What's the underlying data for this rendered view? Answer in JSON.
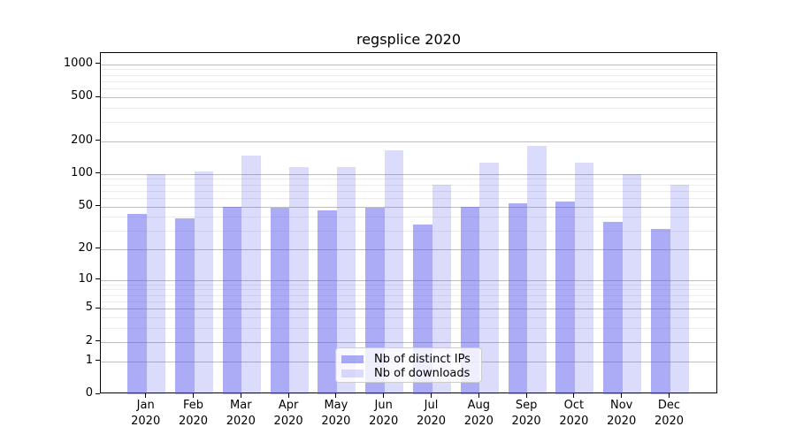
{
  "chart_data": {
    "type": "bar",
    "title": "regsplice 2020",
    "year": "2020",
    "months": [
      "Jan",
      "Feb",
      "Mar",
      "Apr",
      "May",
      "Jun",
      "Jul",
      "Aug",
      "Sep",
      "Oct",
      "Nov",
      "Dec"
    ],
    "categories": [
      "Jan 2020",
      "Feb 2020",
      "Mar 2020",
      "Apr 2020",
      "May 2020",
      "Jun 2020",
      "Jul 2020",
      "Aug 2020",
      "Sep 2020",
      "Oct 2020",
      "Nov 2020",
      "Dec 2020"
    ],
    "series": [
      {
        "name": "Nb of distinct IPs",
        "key": "distinct-ips",
        "fill": "rgba(87,89,236,0.5)",
        "solid_color": "#ababf6",
        "values": [
          43,
          39,
          50,
          49,
          46,
          49,
          34,
          50,
          54,
          56,
          36,
          31
        ]
      },
      {
        "name": "Nb of downloads",
        "key": "downloads",
        "fill": "rgba(87,89,236,0.21)",
        "solid_color": "#dcddfa",
        "values": [
          100,
          105,
          148,
          116,
          115,
          165,
          80,
          127,
          180,
          127,
          100,
          80
        ]
      }
    ],
    "yscale": "log10(value+1)",
    "ylim": [
      0,
      1000
    ],
    "yticks": [
      0,
      1,
      2,
      5,
      10,
      20,
      50,
      100,
      200,
      500,
      1000
    ],
    "ytick_labels": [
      "0",
      "1",
      "2",
      "5",
      "10",
      "20",
      "50",
      "100",
      "200",
      "500",
      "1000"
    ],
    "minor_gridline_values": [
      3,
      4,
      6,
      7,
      8,
      9,
      30,
      40,
      60,
      70,
      80,
      90,
      300,
      400,
      600,
      700,
      800,
      900
    ],
    "grid": "both",
    "legend_position": "inside-lower-center",
    "colors": {
      "grid_major": "#bdbdbd",
      "grid_minor": "#ebebeb",
      "axis_frame": "#000000",
      "text": "#000000",
      "background": "#ffffff"
    }
  }
}
